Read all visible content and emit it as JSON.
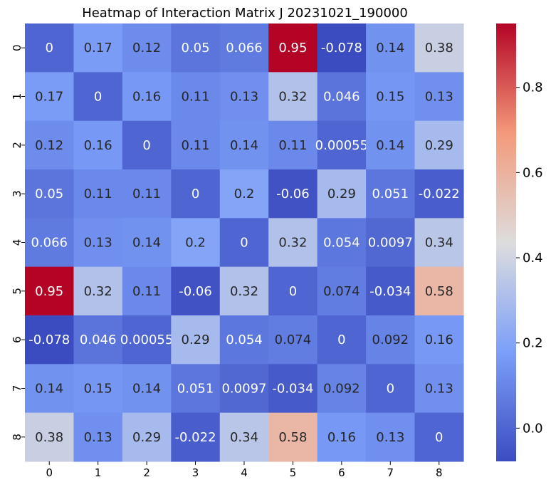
{
  "chart_data": {
    "type": "heatmap",
    "title": "Heatmap of Interaction Matrix J 20231021_190000",
    "x_labels": [
      "0",
      "1",
      "2",
      "3",
      "4",
      "5",
      "6",
      "7",
      "8"
    ],
    "y_labels": [
      "0",
      "1",
      "2",
      "3",
      "4",
      "5",
      "6",
      "7",
      "8"
    ],
    "values": [
      [
        0,
        0.17,
        0.12,
        0.05,
        0.066,
        0.95,
        -0.078,
        0.14,
        0.38
      ],
      [
        0.17,
        0,
        0.16,
        0.11,
        0.13,
        0.32,
        0.046,
        0.15,
        0.13
      ],
      [
        0.12,
        0.16,
        0,
        0.11,
        0.14,
        0.11,
        0.00055,
        0.14,
        0.29
      ],
      [
        0.05,
        0.11,
        0.11,
        0,
        0.2,
        -0.06,
        0.29,
        0.051,
        -0.022
      ],
      [
        0.066,
        0.13,
        0.14,
        0.2,
        0,
        0.32,
        0.054,
        0.0097,
        0.34
      ],
      [
        0.95,
        0.32,
        0.11,
        -0.06,
        0.32,
        0,
        0.074,
        -0.034,
        0.58
      ],
      [
        -0.078,
        0.046,
        0.00055,
        0.29,
        0.054,
        0.074,
        0,
        0.092,
        0.16
      ],
      [
        0.14,
        0.15,
        0.14,
        0.051,
        0.0097,
        -0.034,
        0.092,
        0,
        0.13
      ],
      [
        0.38,
        0.13,
        0.29,
        -0.022,
        0.34,
        0.58,
        0.16,
        0.13,
        0
      ]
    ],
    "labels": [
      [
        "0",
        "0.17",
        "0.12",
        "0.05",
        "0.066",
        "0.95",
        "-0.078",
        "0.14",
        "0.38"
      ],
      [
        "0.17",
        "0",
        "0.16",
        "0.11",
        "0.13",
        "0.32",
        "0.046",
        "0.15",
        "0.13"
      ],
      [
        "0.12",
        "0.16",
        "0",
        "0.11",
        "0.14",
        "0.11",
        "0.00055",
        "0.14",
        "0.29"
      ],
      [
        "0.05",
        "0.11",
        "0.11",
        "0",
        "0.2",
        "-0.06",
        "0.29",
        "0.051",
        "-0.022"
      ],
      [
        "0.066",
        "0.13",
        "0.14",
        "0.2",
        "0",
        "0.32",
        "0.054",
        "0.0097",
        "0.34"
      ],
      [
        "0.95",
        "0.32",
        "0.11",
        "-0.06",
        "0.32",
        "0",
        "0.074",
        "-0.034",
        "0.58"
      ],
      [
        "-0.078",
        "0.046",
        "0.00055",
        "0.29",
        "0.054",
        "0.074",
        "0",
        "0.092",
        "0.16"
      ],
      [
        "0.14",
        "0.15",
        "0.14",
        "0.051",
        "0.0097",
        "-0.034",
        "0.092",
        "0",
        "0.13"
      ],
      [
        "0.38",
        "0.13",
        "0.29",
        "-0.022",
        "0.34",
        "0.58",
        "0.16",
        "0.13",
        "0"
      ]
    ],
    "colormap": "coolwarm",
    "vmin": -0.078,
    "vmax": 0.95,
    "colorbar": {
      "ticks": [
        0.0,
        0.2,
        0.4,
        0.6,
        0.8
      ],
      "tick_labels": [
        "0.0",
        "0.2",
        "0.4",
        "0.6",
        "0.8"
      ]
    },
    "grid": false
  }
}
